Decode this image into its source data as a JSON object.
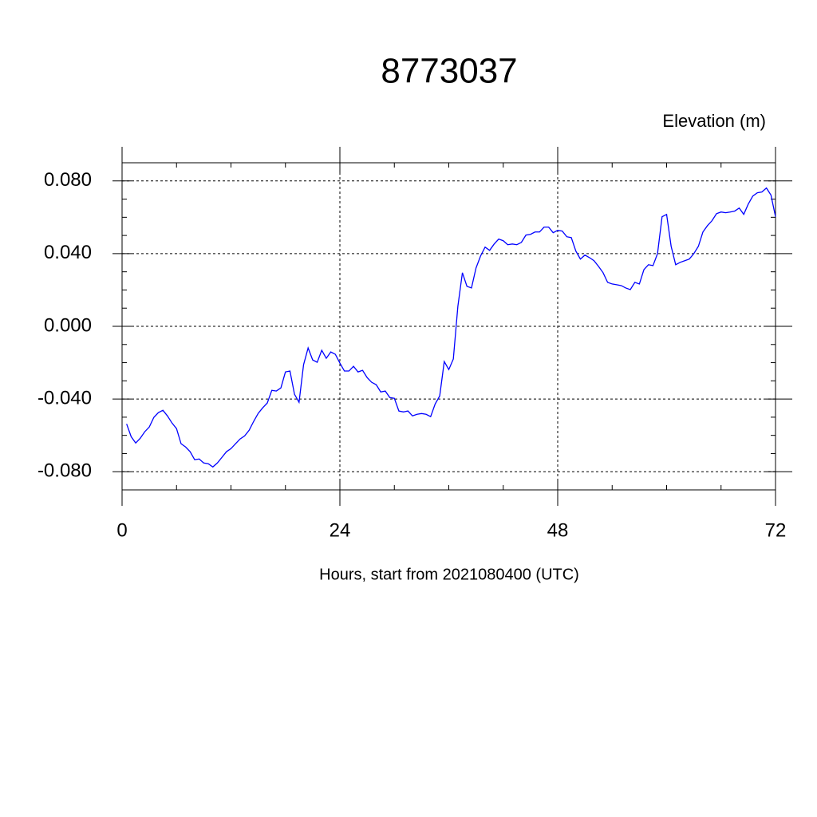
{
  "chart_data": {
    "type": "line",
    "title": "8773037",
    "y_label": "Elevation (m)",
    "x_label": "Hours, start from 2021080400 (UTC)",
    "xlim": [
      0,
      72
    ],
    "ylim": [
      -0.09,
      0.09
    ],
    "xticks": [
      0,
      24,
      48,
      72
    ],
    "xticks_minor": [
      6,
      12,
      18,
      30,
      36,
      42,
      54,
      60,
      66
    ],
    "yticks": [
      {
        "value": -0.08,
        "label": "-0.080"
      },
      {
        "value": -0.04,
        "label": "-0.040"
      },
      {
        "value": 0,
        "label": "0.000"
      },
      {
        "value": 0.04,
        "label": "0.040"
      },
      {
        "value": 0.08,
        "label": "0.080"
      }
    ],
    "yticks_minor": [
      -0.09,
      -0.07,
      -0.06,
      -0.05,
      -0.03,
      -0.02,
      -0.01,
      0.01,
      0.02,
      0.03,
      0.05,
      0.06,
      0.07,
      0.09
    ],
    "grid": true,
    "x": [
      0.5,
      1,
      1.5,
      2,
      2.5,
      3,
      3.5,
      4,
      4.5,
      5,
      5.5,
      6,
      6.5,
      7,
      7.5,
      8,
      8.5,
      9,
      9.5,
      10,
      10.5,
      11,
      11.5,
      12,
      12.5,
      13,
      13.5,
      14,
      14.5,
      15,
      15.5,
      16,
      16.5,
      17,
      17.5,
      18,
      18.5,
      19,
      19.5,
      20,
      20.5,
      21,
      21.5,
      22,
      22.5,
      23,
      23.5,
      24,
      24.5,
      25,
      25.5,
      26,
      26.5,
      27,
      27.5,
      28,
      28.5,
      29,
      29.5,
      30,
      30.5,
      31,
      31.5,
      32,
      32.5,
      33,
      33.5,
      34,
      34.5,
      35,
      35.5,
      36,
      36.5,
      37,
      37.5,
      38,
      38.5,
      39,
      39.5,
      40,
      40.5,
      41,
      41.5,
      42,
      42.5,
      43,
      43.5,
      44,
      44.5,
      45,
      45.5,
      46,
      46.5,
      47,
      47.5,
      48,
      48.5,
      49,
      49.5,
      50,
      50.5,
      51,
      51.5,
      52,
      52.5,
      53,
      53.5,
      54,
      54.5,
      55,
      55.5,
      56,
      56.5,
      57,
      57.5,
      58,
      58.5,
      59,
      59.5,
      60,
      60.5,
      61,
      61.5,
      62,
      62.5,
      63,
      63.5,
      64,
      64.5,
      65,
      65.5,
      66,
      66.5,
      67,
      67.5,
      68,
      68.5,
      69,
      69.5,
      70,
      70.5,
      71,
      71.5,
      72
    ],
    "series": [
      {
        "name": "Elevation",
        "color": "#0000ff",
        "values": [
          -0.0537,
          -0.0607,
          -0.0642,
          -0.0616,
          -0.058,
          -0.0554,
          -0.0501,
          -0.0475,
          -0.0462,
          -0.0493,
          -0.0532,
          -0.0563,
          -0.0646,
          -0.0664,
          -0.069,
          -0.0734,
          -0.073,
          -0.0752,
          -0.0756,
          -0.0774,
          -0.0752,
          -0.0721,
          -0.069,
          -0.0673,
          -0.0646,
          -0.062,
          -0.0603,
          -0.0572,
          -0.0523,
          -0.0479,
          -0.0448,
          -0.0422,
          -0.0352,
          -0.0356,
          -0.0339,
          -0.0251,
          -0.0246,
          -0.0374,
          -0.0418,
          -0.0211,
          -0.0119,
          -0.0185,
          -0.0198,
          -0.0132,
          -0.0176,
          -0.0141,
          -0.0154,
          -0.0202,
          -0.0246,
          -0.0246,
          -0.022,
          -0.0251,
          -0.0242,
          -0.0282,
          -0.0308,
          -0.0321,
          -0.0361,
          -0.0356,
          -0.0392,
          -0.0396,
          -0.0466,
          -0.0471,
          -0.0466,
          -0.0493,
          -0.0484,
          -0.048,
          -0.0484,
          -0.0497,
          -0.0427,
          -0.0383,
          -0.0194,
          -0.0238,
          -0.018,
          0.011,
          0.0295,
          0.022,
          0.0211,
          0.0321,
          0.0387,
          0.0436,
          0.0418,
          0.0453,
          0.048,
          0.0471,
          0.0449,
          0.0453,
          0.0449,
          0.0462,
          0.0502,
          0.0506,
          0.0519,
          0.0519,
          0.0546,
          0.0546,
          0.0515,
          0.0528,
          0.0524,
          0.0493,
          0.0488,
          0.0414,
          0.037,
          0.0392,
          0.0378,
          0.0361,
          0.033,
          0.0295,
          0.0242,
          0.0233,
          0.0229,
          0.0224,
          0.0211,
          0.0202,
          0.0242,
          0.0233,
          0.0312,
          0.0339,
          0.0334,
          0.04,
          0.0603,
          0.0616,
          0.044,
          0.0339,
          0.0352,
          0.0361,
          0.037,
          0.04,
          0.044,
          0.0519,
          0.0554,
          0.0581,
          0.062,
          0.0629,
          0.0625,
          0.0629,
          0.0634,
          0.0651,
          0.0616,
          0.0673,
          0.0717,
          0.0735,
          0.0739,
          0.0761,
          0.0722,
          0.0603
        ]
      }
    ]
  }
}
